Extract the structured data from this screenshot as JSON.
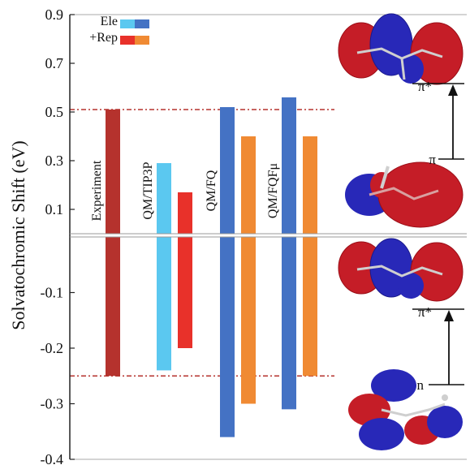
{
  "chart_data": {
    "type": "bar",
    "ylabel": "Solvatochromic Shift (eV)",
    "y_ticks_upper": [
      "0.9",
      "0.7",
      "0.5",
      "0.3",
      "0.1"
    ],
    "y_ticks_lower": [
      "-0.1",
      "-0.2",
      "-0.3",
      "-0.4"
    ],
    "upper_panel": {
      "transition": "π→π*",
      "ylim": [
        0.0,
        0.9
      ]
    },
    "lower_panel": {
      "transition": "n→π*",
      "ylim": [
        -0.4,
        0.0
      ]
    },
    "legend": [
      {
        "label": "Ele",
        "colors": [
          "#5bc8f0",
          "#4472c4"
        ]
      },
      {
        "label": "+Rep",
        "colors": [
          "#e8312a",
          "#f08a33"
        ]
      }
    ],
    "groups": [
      {
        "label": "Experiment",
        "bars": [
          {
            "series": "Experiment",
            "color": "#b5322d",
            "upper": 0.51,
            "lower": -0.25
          }
        ]
      },
      {
        "label": "QM/TIP3P",
        "bars": [
          {
            "series": "Ele",
            "color": "#5bc8f0",
            "upper": 0.29,
            "lower": -0.24
          },
          {
            "series": "+Rep",
            "color": "#e8312a",
            "upper": 0.17,
            "lower": -0.2
          }
        ]
      },
      {
        "label": "QM/FQ",
        "bars": [
          {
            "series": "Ele",
            "color": "#4472c4",
            "upper": 0.52,
            "lower": -0.36
          },
          {
            "series": "+Rep",
            "color": "#f08a33",
            "upper": 0.4,
            "lower": -0.3
          }
        ]
      },
      {
        "label": "QM/FQFμ",
        "bars": [
          {
            "series": "Ele",
            "color": "#4472c4",
            "upper": 0.56,
            "lower": -0.31
          },
          {
            "series": "+Rep",
            "color": "#f08a33",
            "upper": 0.4,
            "lower": -0.25
          }
        ]
      }
    ],
    "reference_lines": [
      {
        "panel": "upper",
        "y": 0.51
      },
      {
        "panel": "lower",
        "y": -0.25
      }
    ],
    "orbital_labels": {
      "pi_star": "π*",
      "pi": "π",
      "n": "n"
    },
    "grid": false
  }
}
